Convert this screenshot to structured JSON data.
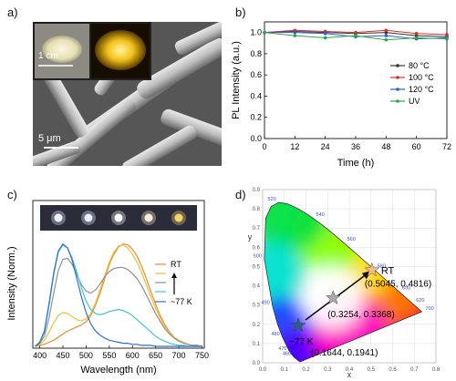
{
  "panels": {
    "a": {
      "label": "a)",
      "scale_inset": "1 cm",
      "scale_main": "5 μm"
    },
    "b": {
      "label": "b)",
      "legend": [
        "80 °C",
        "100 °C",
        "120 °C",
        "UV"
      ],
      "colors": [
        "#333333",
        "#d9302c",
        "#2f5fd6",
        "#2aa84a"
      ]
    },
    "c": {
      "label": "c)",
      "legend": [
        "RT",
        "~77 K"
      ],
      "colors": [
        "#ef8a2e",
        "#e8c23a",
        "#909090",
        "#3cc6cf",
        "#2f6fd4"
      ],
      "swatch_colors": [
        "#e8f4ff",
        "#e6efff",
        "#ffffff",
        "#f8ecd2",
        "#f7d46a"
      ]
    },
    "d": {
      "label": "d)",
      "annotations": {
        "rt": "RT",
        "rt_coord": "(0.5045, 0.4816)",
        "mid_coord": "(0.3254, 0.3368)",
        "lowk": "~77 K",
        "lowk_coord": "(0.1644, 0.1941)"
      },
      "xlabel": "x",
      "ylabel": "y",
      "locus_ticks": [
        "460",
        "470",
        "480",
        "490",
        "500",
        "520",
        "540",
        "560",
        "580",
        "600",
        "620",
        "700"
      ],
      "x_ticks": [
        "0.0",
        "0.1",
        "0.2",
        "0.3",
        "0.4",
        "0.5",
        "0.6",
        "0.7",
        "0.8"
      ],
      "y_ticks": [
        "0.0",
        "0.1",
        "0.2",
        "0.3",
        "0.4",
        "0.5",
        "0.6",
        "0.7",
        "0.8",
        "0.9"
      ]
    }
  },
  "chart_data": [
    {
      "type": "line",
      "panel": "b",
      "xlabel": "Time (h)",
      "ylabel": "PL Intensity (a.u.)",
      "x": [
        0,
        12,
        24,
        36,
        48,
        60,
        72
      ],
      "xticks": [
        "0",
        "12",
        "24",
        "36",
        "48",
        "60",
        "72"
      ],
      "yticks": [
        "0.0",
        "0.2",
        "0.4",
        "0.6",
        "0.8",
        "1.0"
      ],
      "xlim": [
        0,
        72
      ],
      "ylim": [
        0,
        1.1
      ],
      "series": [
        {
          "name": "80 °C",
          "values": [
            1.0,
            1.01,
            1.0,
            0.99,
            1.0,
            0.97,
            0.96
          ]
        },
        {
          "name": "100 °C",
          "values": [
            1.0,
            1.02,
            1.01,
            1.0,
            1.02,
            0.99,
            0.98
          ]
        },
        {
          "name": "120 °C",
          "values": [
            1.0,
            1.0,
            0.99,
            0.96,
            0.97,
            0.94,
            0.95
          ]
        },
        {
          "name": "UV",
          "values": [
            1.0,
            0.97,
            0.95,
            0.97,
            0.93,
            0.95,
            0.94
          ]
        }
      ]
    },
    {
      "type": "line",
      "panel": "c",
      "xlabel": "Wavelength (nm)",
      "ylabel": "Intensity (Norm.)",
      "xticks": [
        "400",
        "450",
        "500",
        "550",
        "600",
        "650",
        "700",
        "750"
      ],
      "xlim": [
        385,
        755
      ],
      "ylim": [
        0,
        1.05
      ],
      "x": [
        390,
        400,
        410,
        420,
        430,
        440,
        450,
        460,
        470,
        480,
        490,
        500,
        510,
        520,
        530,
        540,
        550,
        560,
        570,
        580,
        590,
        600,
        610,
        620,
        630,
        640,
        650,
        660,
        670,
        680,
        690,
        700,
        710,
        720,
        730,
        740,
        750
      ],
      "series": [
        {
          "values": [
            0.0,
            0.01,
            0.02,
            0.04,
            0.06,
            0.09,
            0.12,
            0.15,
            0.17,
            0.19,
            0.21,
            0.24,
            0.3,
            0.4,
            0.52,
            0.66,
            0.8,
            0.9,
            0.97,
            1.0,
            0.99,
            0.95,
            0.88,
            0.78,
            0.66,
            0.53,
            0.41,
            0.3,
            0.21,
            0.14,
            0.09,
            0.06,
            0.04,
            0.02,
            0.01,
            0.01,
            0.0
          ]
        },
        {
          "values": [
            0.0,
            0.02,
            0.06,
            0.14,
            0.23,
            0.3,
            0.33,
            0.32,
            0.29,
            0.26,
            0.25,
            0.27,
            0.32,
            0.42,
            0.55,
            0.69,
            0.82,
            0.92,
            0.98,
            0.99,
            0.96,
            0.9,
            0.82,
            0.72,
            0.6,
            0.48,
            0.37,
            0.27,
            0.19,
            0.13,
            0.09,
            0.06,
            0.04,
            0.02,
            0.01,
            0.01,
            0.0
          ]
        },
        {
          "values": [
            0.0,
            0.03,
            0.1,
            0.28,
            0.52,
            0.74,
            0.85,
            0.86,
            0.8,
            0.7,
            0.6,
            0.54,
            0.52,
            0.55,
            0.61,
            0.68,
            0.73,
            0.76,
            0.77,
            0.77,
            0.75,
            0.71,
            0.66,
            0.59,
            0.5,
            0.41,
            0.32,
            0.24,
            0.17,
            0.12,
            0.08,
            0.05,
            0.03,
            0.02,
            0.01,
            0.01,
            0.0
          ]
        },
        {
          "values": [
            0.0,
            0.04,
            0.14,
            0.4,
            0.7,
            0.92,
            0.99,
            0.96,
            0.86,
            0.72,
            0.57,
            0.44,
            0.36,
            0.32,
            0.31,
            0.32,
            0.34,
            0.35,
            0.36,
            0.35,
            0.33,
            0.3,
            0.26,
            0.22,
            0.18,
            0.14,
            0.1,
            0.07,
            0.05,
            0.03,
            0.02,
            0.01,
            0.01,
            0.0,
            0.0,
            0.0,
            0.0
          ]
        },
        {
          "values": [
            0.0,
            0.04,
            0.15,
            0.42,
            0.72,
            0.93,
            1.0,
            0.96,
            0.84,
            0.66,
            0.48,
            0.33,
            0.22,
            0.15,
            0.11,
            0.08,
            0.06,
            0.05,
            0.04,
            0.03,
            0.03,
            0.02,
            0.02,
            0.01,
            0.01,
            0.01,
            0.0,
            0.0,
            0.0,
            0.0,
            0.0,
            0.0,
            0.0,
            0.0,
            0.0,
            0.0,
            0.0
          ]
        }
      ]
    },
    {
      "type": "scatter",
      "panel": "d",
      "xlabel": "x",
      "ylabel": "y",
      "xlim": [
        0,
        0.8
      ],
      "ylim": [
        0,
        0.9
      ],
      "points": [
        {
          "label": "RT",
          "x": 0.5045,
          "y": 0.4816
        },
        {
          "label": "",
          "x": 0.3254,
          "y": 0.3368
        },
        {
          "label": "~77 K",
          "x": 0.1644,
          "y": 0.1941
        }
      ]
    }
  ]
}
